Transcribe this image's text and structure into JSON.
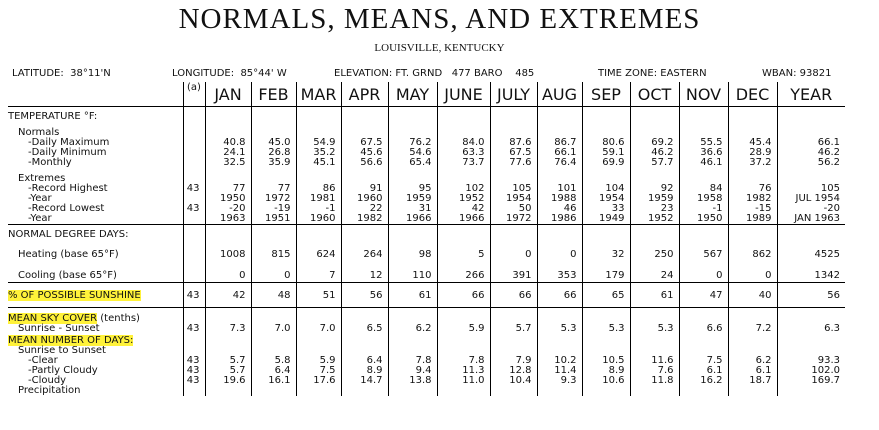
{
  "header": {
    "title": "NORMALS, MEANS, AND EXTREMES",
    "subtitle": "LOUISVILLE, KENTUCKY",
    "latitude": "LATITUDE:  38°11'N",
    "longitude": "LONGITUDE:  85°44' W",
    "elevation": "ELEVATION: FT. GRND   477 BARO    485",
    "timezone": "TIME ZONE: EASTERN",
    "wban": "WBAN: 93821"
  },
  "columns": [
    "(a)",
    "JAN",
    "FEB",
    "MAR",
    "APR",
    "MAY",
    "JUNE",
    "JULY",
    "AUG",
    "SEP",
    "OCT",
    "NOV",
    "DEC",
    "YEAR"
  ],
  "sections": [
    {
      "rows": [
        {
          "kind": "heading",
          "label": "TEMPERATURE °F:"
        },
        {
          "kind": "group",
          "label": "Normals"
        },
        {
          "kind": "item",
          "label": "-Daily Maximum",
          "values": [
            "40.8",
            "45.0",
            "54.9",
            "67.5",
            "76.2",
            "84.0",
            "87.6",
            "86.7",
            "80.6",
            "69.2",
            "55.5",
            "45.4"
          ],
          "year": "66.1"
        },
        {
          "kind": "item",
          "label": "-Daily Minimum",
          "values": [
            "24.1",
            "26.8",
            "35.2",
            "45.6",
            "54.6",
            "63.3",
            "67.5",
            "66.1",
            "59.1",
            "46.2",
            "36.6",
            "28.9"
          ],
          "year": "46.2"
        },
        {
          "kind": "item",
          "label": "-Monthly",
          "values": [
            "32.5",
            "35.9",
            "45.1",
            "56.6",
            "65.4",
            "73.7",
            "77.6",
            "76.4",
            "69.9",
            "57.7",
            "46.1",
            "37.2"
          ],
          "year": "56.2"
        },
        {
          "kind": "group",
          "label": "Extremes"
        },
        {
          "kind": "item",
          "label": "-Record Highest",
          "a": "43",
          "values": [
            "77",
            "77",
            "86",
            "91",
            "95",
            "102",
            "105",
            "101",
            "104",
            "92",
            "84",
            "76"
          ],
          "year": "105"
        },
        {
          "kind": "item",
          "label": "-Year",
          "values": [
            "1950",
            "1972",
            "1981",
            "1960",
            "1959",
            "1952",
            "1954",
            "1988",
            "1954",
            "1959",
            "1958",
            "1982"
          ],
          "year": "JUL 1954"
        },
        {
          "kind": "item",
          "label": "-Record Lowest",
          "a": "43",
          "values": [
            "-20",
            "-19",
            "-1",
            "22",
            "31",
            "42",
            "50",
            "46",
            "33",
            "23",
            "-1",
            "-15"
          ],
          "year": "-20"
        },
        {
          "kind": "item",
          "label": "-Year",
          "values": [
            "1963",
            "1951",
            "1960",
            "1982",
            "1966",
            "1966",
            "1972",
            "1986",
            "1949",
            "1952",
            "1950",
            "1989"
          ],
          "year": "JAN 1963"
        }
      ]
    },
    {
      "rows": [
        {
          "kind": "heading",
          "label": "NORMAL DEGREE DAYS:"
        },
        {
          "kind": "group",
          "label": "Heating (base 65°F)",
          "values": [
            "1008",
            "815",
            "624",
            "264",
            "98",
            "5",
            "0",
            "0",
            "32",
            "250",
            "567",
            "862"
          ],
          "year": "4525"
        },
        {
          "kind": "group",
          "label": "Cooling (base 65°F)",
          "values": [
            "0",
            "0",
            "7",
            "12",
            "110",
            "266",
            "391",
            "353",
            "179",
            "24",
            "0",
            "0"
          ],
          "year": "1342"
        }
      ]
    },
    {
      "rows": [
        {
          "kind": "heading",
          "label": "% OF POSSIBLE SUNSHINE",
          "highlight": true,
          "a": "43",
          "values": [
            "42",
            "48",
            "51",
            "56",
            "61",
            "66",
            "66",
            "66",
            "65",
            "61",
            "47",
            "40"
          ],
          "year": "56"
        }
      ]
    },
    {
      "rows": [
        {
          "kind": "heading",
          "label": "MEAN SKY COVER",
          "note": "(tenths)",
          "highlight": true
        },
        {
          "kind": "group",
          "label": "Sunrise - Sunset",
          "a": "43",
          "values": [
            "7.3",
            "7.0",
            "7.0",
            "6.5",
            "6.2",
            "5.9",
            "5.7",
            "5.3",
            "5.3",
            "5.3",
            "6.6",
            "7.2"
          ],
          "year": "6.3"
        },
        {
          "kind": "heading",
          "label": "MEAN NUMBER OF DAYS:",
          "highlight": true
        },
        {
          "kind": "group",
          "label": "Sunrise to Sunset"
        },
        {
          "kind": "item",
          "label": "-Clear",
          "a": "43",
          "values": [
            "5.7",
            "5.8",
            "5.9",
            "6.4",
            "7.8",
            "7.8",
            "7.9",
            "10.2",
            "10.5",
            "11.6",
            "7.5",
            "6.2"
          ],
          "year": "93.3"
        },
        {
          "kind": "item",
          "label": "-Partly Cloudy",
          "a": "43",
          "values": [
            "5.7",
            "6.4",
            "7.5",
            "8.9",
            "9.4",
            "11.3",
            "12.8",
            "11.4",
            "8.9",
            "7.6",
            "6.1",
            "6.1"
          ],
          "year": "102.0"
        },
        {
          "kind": "item",
          "label": "-Cloudy",
          "a": "43",
          "values": [
            "19.6",
            "16.1",
            "17.6",
            "14.7",
            "13.8",
            "11.0",
            "10.4",
            "9.3",
            "10.6",
            "11.8",
            "16.2",
            "18.7"
          ],
          "year": "169.7"
        },
        {
          "kind": "group",
          "label": "Precipitation"
        }
      ]
    }
  ]
}
